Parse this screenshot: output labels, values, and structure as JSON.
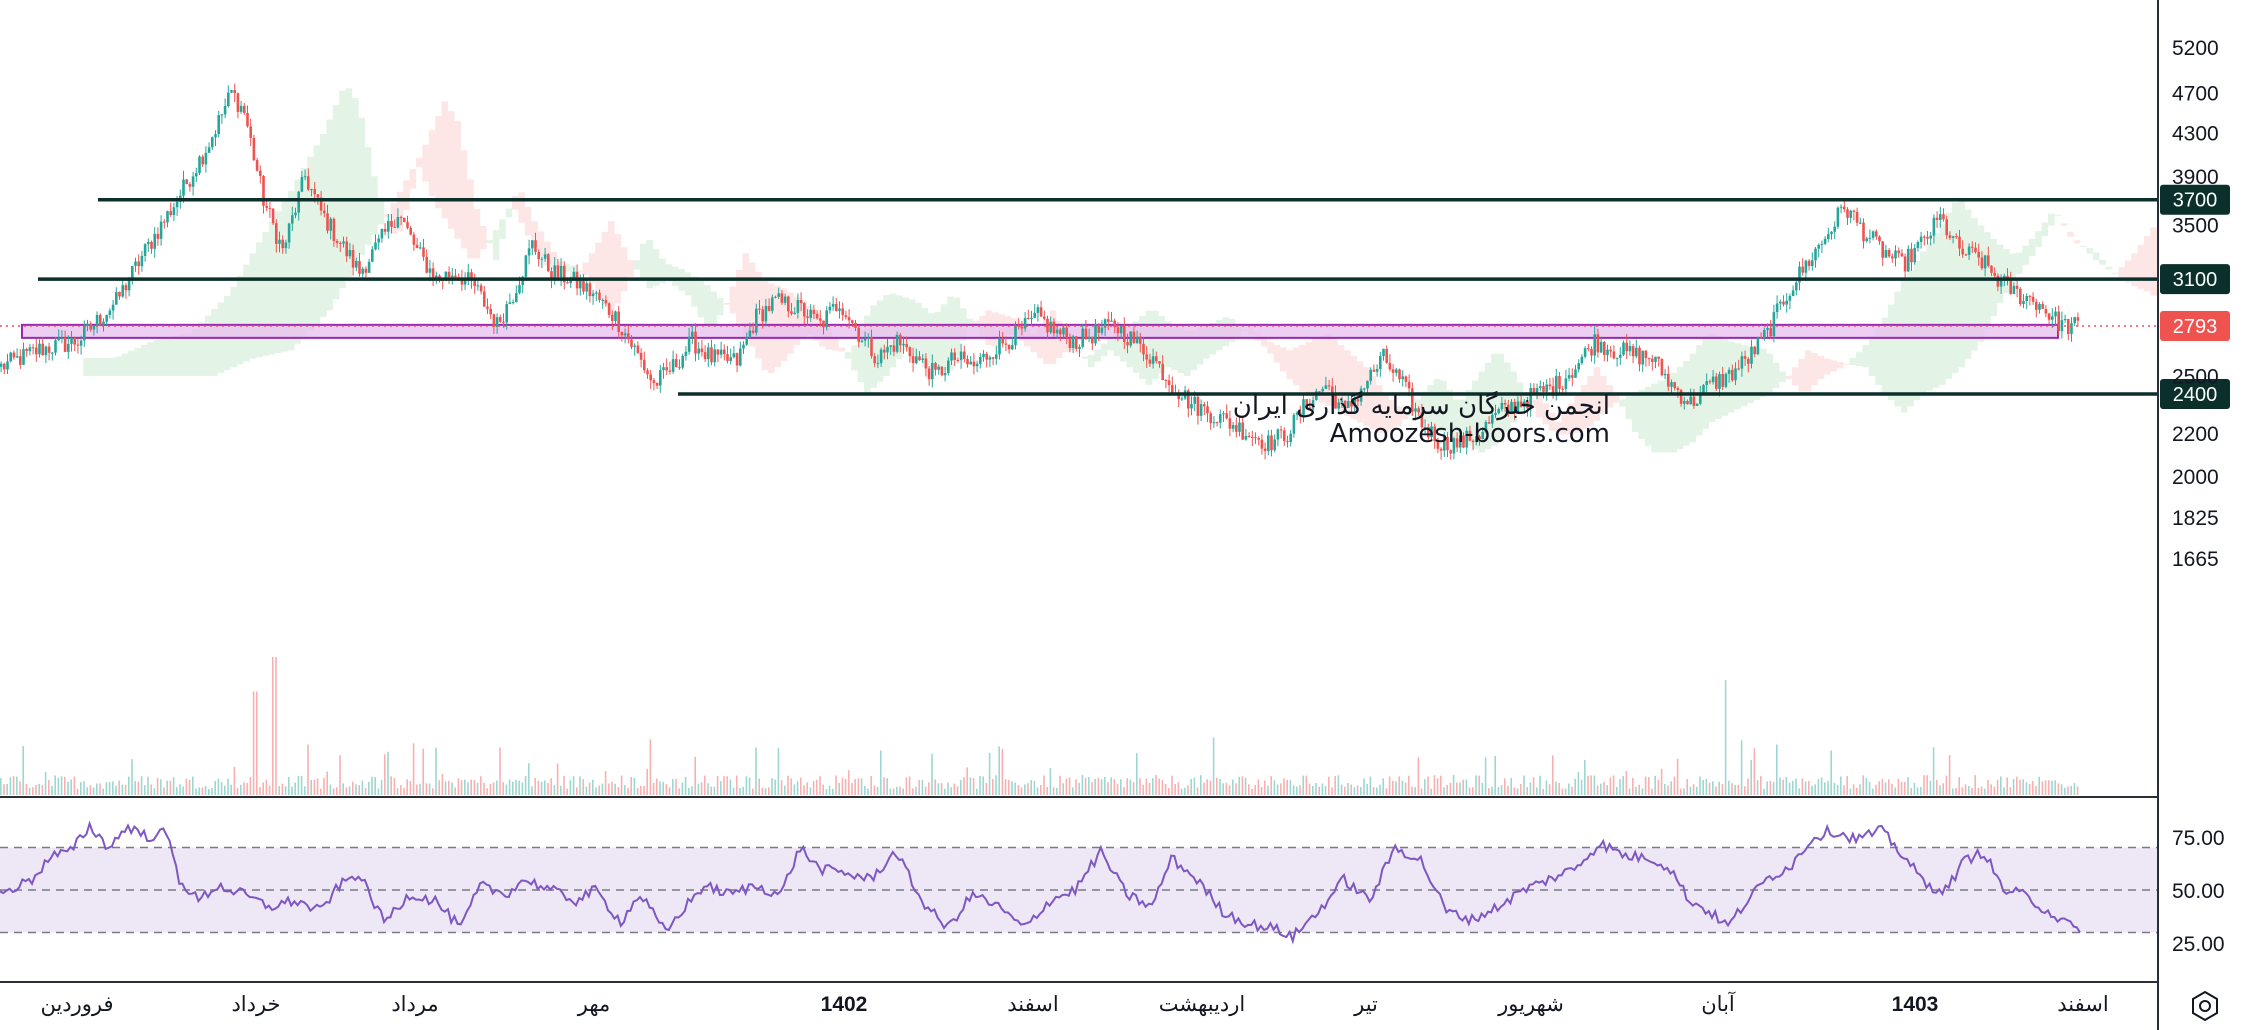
{
  "watermark": {
    "line1": "انجمن خبرگان سرمایه گذاری ایران",
    "line2": "Amoozesh-boors.com"
  },
  "colors": {
    "up": "#26a69a",
    "down": "#ef5350",
    "level": "#0b2f2a",
    "zone_fill": "#e8bff0",
    "zone_stroke": "#9c27b0",
    "rsi_line": "#7e57c2",
    "rsi_band": "#ede7f6",
    "cloud_green": "#e3f4e7",
    "cloud_red": "#fde6e6",
    "last_price": "#ef5350"
  },
  "chart_data": [
    {
      "type": "candlestick",
      "y_scale": "log",
      "ylim": [
        1665,
        5400
      ],
      "yticks": [
        "5200",
        "4700",
        "4300",
        "3900",
        "3500",
        "2500",
        "2200",
        "2000",
        "1825",
        "1665"
      ],
      "x_labels": [
        {
          "text": "فروردین",
          "bold": false
        },
        {
          "text": "خرداد",
          "bold": false
        },
        {
          "text": "مرداد",
          "bold": false
        },
        {
          "text": "مهر",
          "bold": false
        },
        {
          "text": "1402",
          "bold": true
        },
        {
          "text": "اسفند",
          "bold": false
        },
        {
          "text": "اردیبهشت",
          "bold": false
        },
        {
          "text": "تیر",
          "bold": false
        },
        {
          "text": "شهریور",
          "bold": false
        },
        {
          "text": "آبان",
          "bold": false
        },
        {
          "text": "1403",
          "bold": true
        },
        {
          "text": "اسفند",
          "bold": false
        }
      ],
      "levels": [
        {
          "price": 3700,
          "label": "3700"
        },
        {
          "price": 3100,
          "label": "3100"
        },
        {
          "price": 2400,
          "label": "2400"
        }
      ],
      "support_zone": [
        2720,
        2800
      ],
      "last_price": {
        "value": 2793,
        "label": "2793"
      },
      "close_path": [
        [
          0,
          2550
        ],
        [
          12,
          2650
        ],
        [
          24,
          2700
        ],
        [
          36,
          2950
        ],
        [
          45,
          3300
        ],
        [
          55,
          3700
        ],
        [
          65,
          4200
        ],
        [
          72,
          4700
        ],
        [
          76,
          4500
        ],
        [
          82,
          3700
        ],
        [
          88,
          3300
        ],
        [
          95,
          3900
        ],
        [
          100,
          3600
        ],
        [
          105,
          3400
        ],
        [
          112,
          3150
        ],
        [
          118,
          3350
        ],
        [
          124,
          3600
        ],
        [
          130,
          3300
        ],
        [
          136,
          3100
        ],
        [
          142,
          3150
        ],
        [
          148,
          3050
        ],
        [
          155,
          2800
        ],
        [
          160,
          3000
        ],
        [
          166,
          3350
        ],
        [
          172,
          3150
        ],
        [
          178,
          3100
        ],
        [
          185,
          3000
        ],
        [
          192,
          2850
        ],
        [
          198,
          2650
        ],
        [
          204,
          2450
        ],
        [
          210,
          2550
        ],
        [
          216,
          2700
        ],
        [
          222,
          2600
        ],
        [
          230,
          2580
        ],
        [
          236,
          2850
        ],
        [
          242,
          2950
        ],
        [
          250,
          2900
        ],
        [
          256,
          2800
        ],
        [
          262,
          2950
        ],
        [
          268,
          2750
        ],
        [
          274,
          2600
        ],
        [
          280,
          2700
        ],
        [
          286,
          2600
        ],
        [
          292,
          2500
        ],
        [
          298,
          2600
        ],
        [
          304,
          2550
        ],
        [
          310,
          2650
        ],
        [
          318,
          2750
        ],
        [
          324,
          2850
        ],
        [
          330,
          2750
        ],
        [
          336,
          2700
        ],
        [
          342,
          2750
        ],
        [
          348,
          2800
        ],
        [
          354,
          2700
        ],
        [
          360,
          2600
        ],
        [
          366,
          2450
        ],
        [
          372,
          2350
        ],
        [
          378,
          2300
        ],
        [
          384,
          2250
        ],
        [
          390,
          2200
        ],
        [
          396,
          2150
        ],
        [
          402,
          2200
        ],
        [
          408,
          2350
        ],
        [
          414,
          2450
        ],
        [
          420,
          2300
        ],
        [
          426,
          2450
        ],
        [
          432,
          2600
        ],
        [
          438,
          2450
        ],
        [
          444,
          2250
        ],
        [
          450,
          2150
        ],
        [
          456,
          2150
        ],
        [
          462,
          2200
        ],
        [
          468,
          2300
        ],
        [
          474,
          2350
        ],
        [
          480,
          2400
        ],
        [
          486,
          2450
        ],
        [
          492,
          2550
        ],
        [
          498,
          2700
        ],
        [
          504,
          2650
        ],
        [
          510,
          2620
        ],
        [
          516,
          2600
        ],
        [
          522,
          2450
        ],
        [
          528,
          2350
        ],
        [
          534,
          2450
        ],
        [
          540,
          2500
        ],
        [
          546,
          2600
        ],
        [
          552,
          2750
        ],
        [
          558,
          3000
        ],
        [
          564,
          3200
        ],
        [
          570,
          3400
        ],
        [
          576,
          3650
        ],
        [
          582,
          3450
        ],
        [
          588,
          3300
        ],
        [
          594,
          3200
        ],
        [
          600,
          3350
        ],
        [
          606,
          3550
        ],
        [
          612,
          3300
        ],
        [
          618,
          3250
        ],
        [
          624,
          3100
        ],
        [
          630,
          3000
        ],
        [
          636,
          2950
        ],
        [
          642,
          2830
        ],
        [
          645,
          2793
        ]
      ],
      "volume_spikes": [
        [
          36,
          0.45
        ],
        [
          39,
          0.6
        ],
        [
          245,
          0.5
        ],
        [
          299,
          1.0
        ],
        [
          335,
          0.56
        ],
        [
          563,
          0.33
        ],
        [
          572,
          0.31
        ]
      ]
    },
    {
      "type": "line",
      "indicator": "RSI",
      "ylim": [
        25,
        80
      ],
      "yticks": [
        "75.00",
        "50.00",
        "25.00"
      ],
      "bands": [
        30,
        50,
        70
      ],
      "series": [
        {
          "values": [
            [
              0,
              48
            ],
            [
              10,
              55
            ],
            [
              16,
              66
            ],
            [
              22,
              68
            ],
            [
              28,
              80
            ],
            [
              34,
              70
            ],
            [
              40,
              80
            ],
            [
              46,
              75
            ],
            [
              52,
              77
            ],
            [
              56,
              55
            ],
            [
              62,
              45
            ],
            [
              68,
              52
            ],
            [
              76,
              48
            ],
            [
              84,
              42
            ],
            [
              92,
              45
            ],
            [
              100,
              40
            ],
            [
              106,
              52
            ],
            [
              112,
              58
            ],
            [
              120,
              35
            ],
            [
              128,
              48
            ],
            [
              136,
              45
            ],
            [
              144,
              32
            ],
            [
              150,
              52
            ],
            [
              158,
              48
            ],
            [
              164,
              55
            ],
            [
              172,
              50
            ],
            [
              180,
              45
            ],
            [
              186,
              50
            ],
            [
              194,
              35
            ],
            [
              200,
              48
            ],
            [
              208,
              30
            ],
            [
              214,
              42
            ],
            [
              220,
              52
            ],
            [
              228,
              48
            ],
            [
              236,
              52
            ],
            [
              244,
              48
            ],
            [
              250,
              70
            ],
            [
              256,
              60
            ],
            [
              264,
              58
            ],
            [
              272,
              55
            ],
            [
              280,
              68
            ],
            [
              288,
              45
            ],
            [
              296,
              32
            ],
            [
              304,
              48
            ],
            [
              312,
              42
            ],
            [
              320,
              32
            ],
            [
              328,
              45
            ],
            [
              336,
              50
            ],
            [
              344,
              68
            ],
            [
              352,
              48
            ],
            [
              360,
              42
            ],
            [
              366,
              65
            ],
            [
              374,
              55
            ],
            [
              382,
              40
            ],
            [
              390,
              34
            ],
            [
              398,
              32
            ],
            [
              404,
              28
            ],
            [
              412,
              40
            ],
            [
              420,
              55
            ],
            [
              428,
              45
            ],
            [
              436,
              70
            ],
            [
              444,
              64
            ],
            [
              452,
              40
            ],
            [
              460,
              36
            ],
            [
              468,
              42
            ],
            [
              476,
              50
            ],
            [
              484,
              55
            ],
            [
              492,
              60
            ],
            [
              500,
              72
            ],
            [
              508,
              66
            ],
            [
              516,
              65
            ],
            [
              522,
              60
            ],
            [
              528,
              45
            ],
            [
              534,
              40
            ],
            [
              540,
              33
            ],
            [
              546,
              45
            ],
            [
              552,
              55
            ],
            [
              560,
              62
            ],
            [
              566,
              74
            ],
            [
              572,
              78
            ],
            [
              580,
              74
            ],
            [
              588,
              78
            ],
            [
              596,
              64
            ],
            [
              602,
              52
            ],
            [
              608,
              50
            ],
            [
              614,
              64
            ],
            [
              620,
              68
            ],
            [
              626,
              50
            ],
            [
              632,
              48
            ],
            [
              638,
              42
            ],
            [
              644,
              36
            ],
            [
              650,
              30
            ]
          ]
        }
      ]
    }
  ]
}
